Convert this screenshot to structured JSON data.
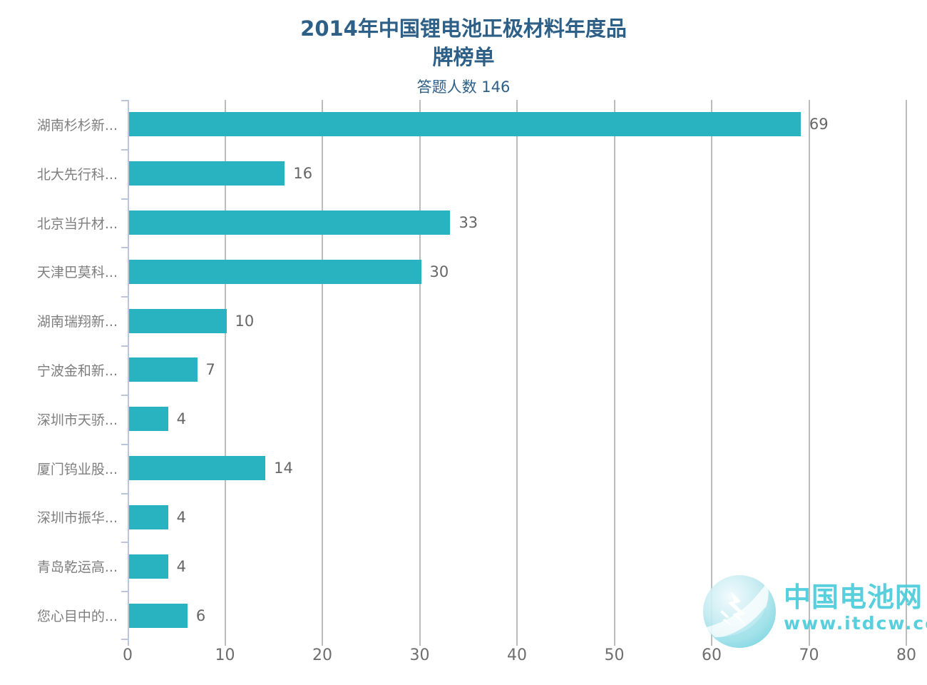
{
  "title": {
    "line1": "2014年中国锂电池正极材料年度品",
    "line2": "牌榜单",
    "subtitle": "答题人数 146"
  },
  "chart_data": {
    "type": "bar",
    "orientation": "horizontal",
    "title": "2014年中国锂电池正极材料年度品牌榜单",
    "subtitle": "答题人数 146",
    "categories": [
      "湖南杉杉新...",
      "北大先行科...",
      "北京当升材...",
      "天津巴莫科...",
      "湖南瑞翔新...",
      "宁波金和新...",
      "深圳市天骄...",
      "厦门钨业股...",
      "深圳市振华...",
      "青岛乾运高...",
      "您心目中的..."
    ],
    "values": [
      69,
      16,
      33,
      30,
      10,
      7,
      4,
      14,
      4,
      4,
      6
    ],
    "xlim": [
      0,
      80
    ],
    "x_ticks": [
      0,
      10,
      20,
      30,
      40,
      50,
      60,
      70,
      80
    ],
    "grid": true,
    "legend": "none",
    "value_labels_shown": true
  },
  "watermark": {
    "brand": "中国电池网",
    "url": "www.itdcw.com",
    "icon": "globe-lightning-icon",
    "color": "#4accdb"
  },
  "colors": {
    "background": "#ffffff",
    "bar": "#29b3c0",
    "title_text": "#2d5f87",
    "axis_line": "#bac5da",
    "gridline": "#bcbcbc",
    "category_label": "#7e7e7e",
    "value_label": "#666666",
    "tick_label": "#6e6e6e"
  }
}
